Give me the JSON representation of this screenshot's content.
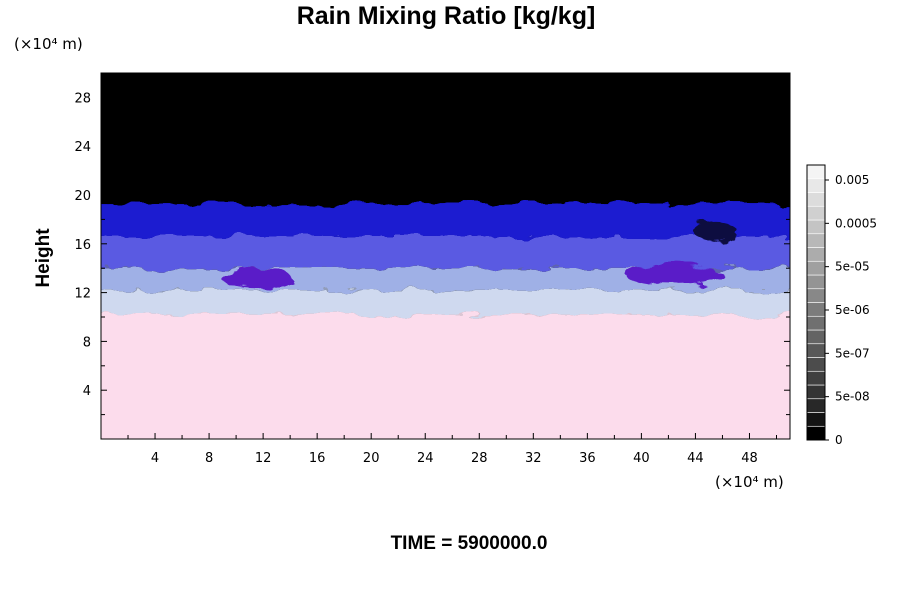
{
  "chart_data": {
    "type": "heatmap",
    "title": "Rain Mixing Ratio [kg/kg]",
    "ylabel": "Height",
    "x_unit": "(×10⁴ m)",
    "y_unit": "(×10⁴ m)",
    "xlim": [
      0,
      51
    ],
    "ylim": [
      0,
      30
    ],
    "x_ticks": [
      4,
      8,
      12,
      16,
      20,
      24,
      28,
      32,
      36,
      40,
      44,
      48
    ],
    "y_ticks": [
      4,
      8,
      12,
      16,
      20,
      24,
      28
    ],
    "colorbar": {
      "labels": [
        "0.005",
        "0.0005",
        "5e-05",
        "5e-06",
        "5e-07",
        "5e-08",
        "0"
      ],
      "colors": [
        "#000000",
        "#141414",
        "#282828",
        "#343434",
        "#404040",
        "#4c4c4c",
        "#585858",
        "#646464",
        "#707070",
        "#7c7c7c",
        "#888888",
        "#949494",
        "#a0a0a0",
        "#acacac",
        "#b8b8b8",
        "#c4c4c4",
        "#d0d0d0",
        "#dcdcdc",
        "#e8e8e8",
        "#f4f4f4"
      ]
    },
    "field_layers": [
      {
        "level": "background",
        "y_range": [
          0,
          30
        ],
        "color": "#000000"
      },
      {
        "level": "lowest",
        "y_range": [
          0,
          10.2
        ],
        "color": "#fcdcec"
      },
      {
        "level": "low",
        "y_range": [
          10.2,
          12.2
        ],
        "color": "#cfd9ef"
      },
      {
        "level": "mid-low",
        "y_range": [
          12.2,
          14.0
        ],
        "color": "#9fb0e6"
      },
      {
        "level": "mid",
        "y_range": [
          14.0,
          16.6
        ],
        "color": "#5a5ae2"
      },
      {
        "level": "high",
        "y_range": [
          16.6,
          19.3
        ],
        "color": "#1a1ad0"
      }
    ]
  },
  "time_label": "TIME = 5900000.0"
}
